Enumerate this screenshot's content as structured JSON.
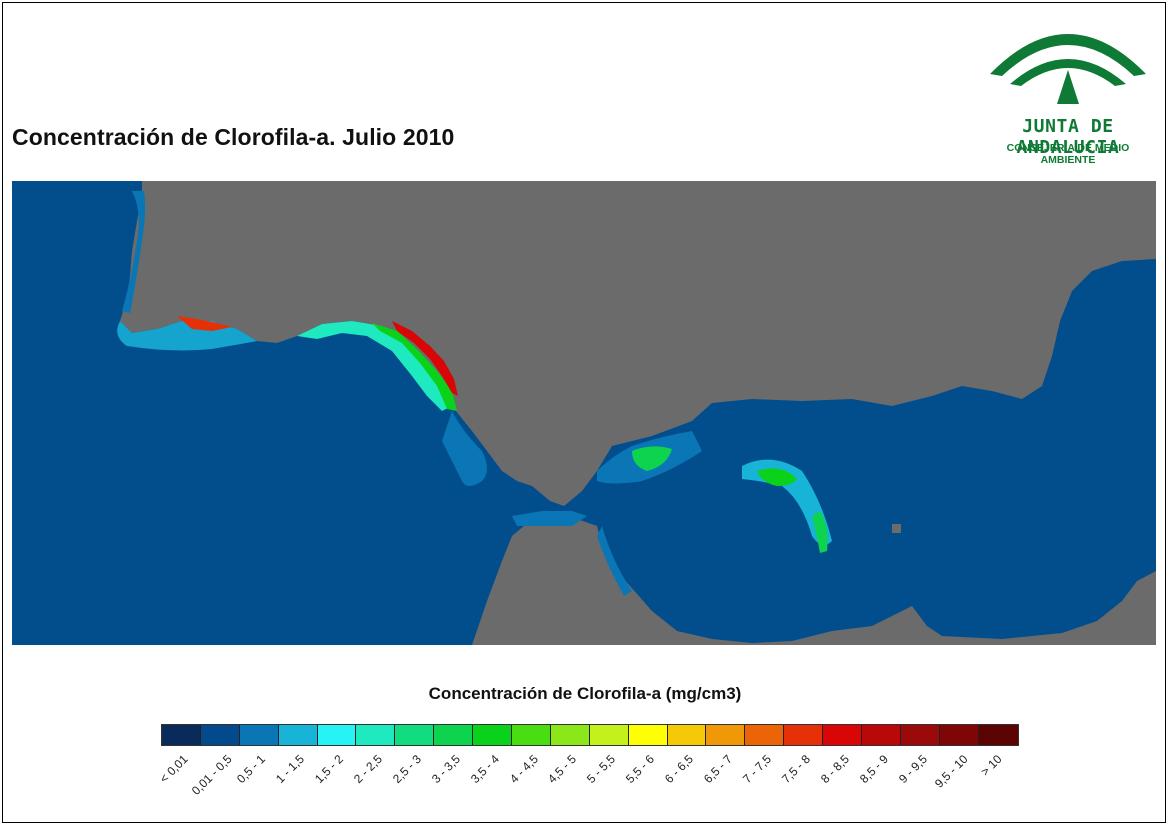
{
  "title": "Concentración de Clorofila-a. Julio 2010",
  "logo": {
    "name": "JUNTA DE ANDALUCIA",
    "department": "CONSEJERÍA DE MEDIO AMBIENTE",
    "color": "#0f7a35"
  },
  "map": {
    "sea_color": "#024e8c",
    "land_color": "#6b6b6b"
  },
  "legend": {
    "title": "Concentración de Clorofila-a (mg/cm3)",
    "classes": [
      {
        "label": "< 0,01",
        "color": "#0a2a5c"
      },
      {
        "label": "0,01 - 0,5",
        "color": "#034a8c"
      },
      {
        "label": "0,5 - 1",
        "color": "#0a76b6"
      },
      {
        "label": "1 - 1,5",
        "color": "#17b4d8"
      },
      {
        "label": "1,5 - 2",
        "color": "#27f3f5"
      },
      {
        "label": "2 - 2,5",
        "color": "#1ee9bf"
      },
      {
        "label": "2,5 - 3",
        "color": "#12dc80"
      },
      {
        "label": "3 - 3,5",
        "color": "#0ed34f"
      },
      {
        "label": "3,5 - 4",
        "color": "#0ad21a"
      },
      {
        "label": "4 - 4,5",
        "color": "#4add12"
      },
      {
        "label": "4,5 - 5",
        "color": "#8be61a"
      },
      {
        "label": "5 - 5,5",
        "color": "#c4f01c"
      },
      {
        "label": "5,5 - 6",
        "color": "#fefe04"
      },
      {
        "label": "6 - 6,5",
        "color": "#f5c808"
      },
      {
        "label": "6,5 - 7",
        "color": "#ef9808"
      },
      {
        "label": "7 - 7,5",
        "color": "#eb6408"
      },
      {
        "label": "7,5 - 8",
        "color": "#e53008"
      },
      {
        "label": "8 - 8,5",
        "color": "#d80606"
      },
      {
        "label": "8,5 - 9",
        "color": "#b80808"
      },
      {
        "label": "9 - 9,5",
        "color": "#9a0a0a"
      },
      {
        "label": "9,5 - 10",
        "color": "#7e0606"
      },
      {
        "label": "> 10",
        "color": "#5c0404"
      }
    ]
  }
}
